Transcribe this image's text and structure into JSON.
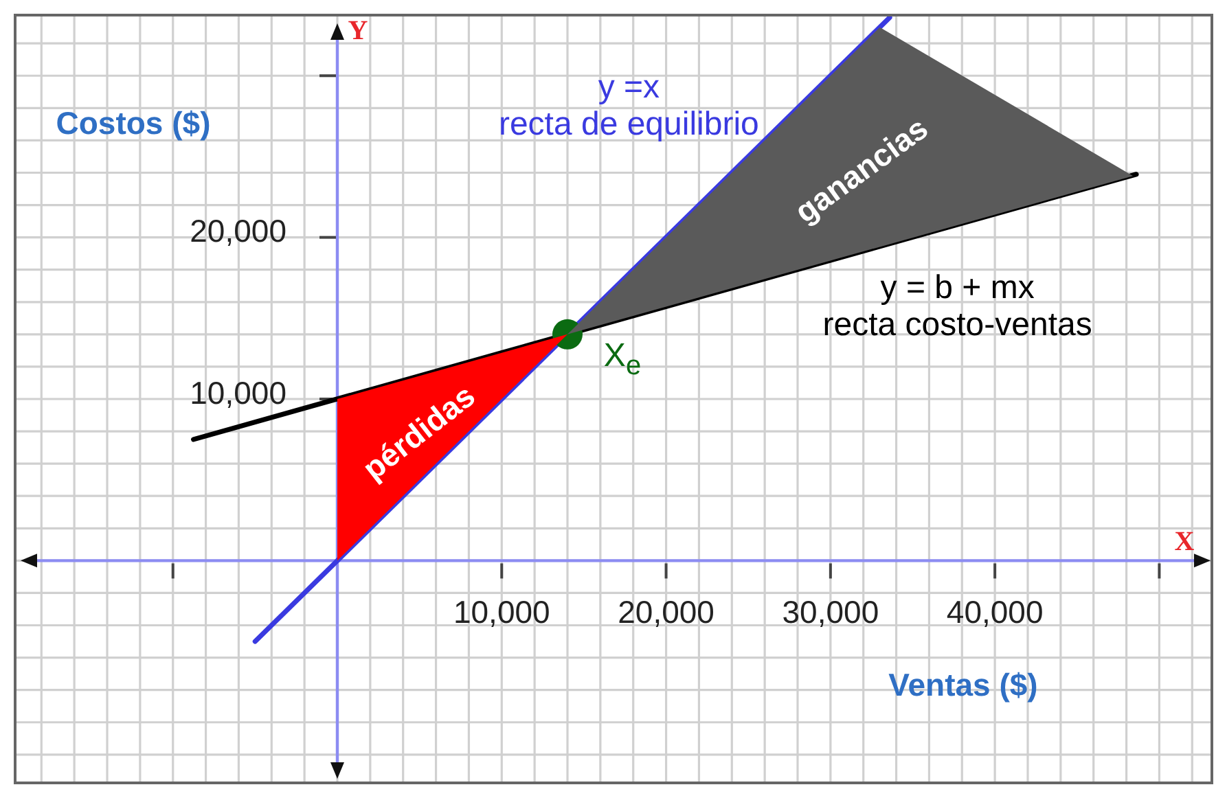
{
  "chart_data": {
    "type": "line",
    "xlabel": "Ventas ($)",
    "ylabel": "Costos ($)",
    "annotations": [
      "X",
      "Y"
    ],
    "xlim": [
      -19600,
      53200
    ],
    "ylim": [
      -13750,
      33750
    ],
    "xticks": [
      {
        "value": -10000,
        "label": null
      },
      {
        "value": 10000,
        "label": "10,000"
      },
      {
        "value": 20000,
        "label": "20,000"
      },
      {
        "value": 30000,
        "label": "30,000"
      },
      {
        "value": 40000,
        "label": "40,000"
      },
      {
        "value": 50000,
        "label": null
      }
    ],
    "yticks": [
      {
        "value": 10000,
        "label": "10,000"
      },
      {
        "value": 20000,
        "label": "20,000"
      },
      {
        "value": 30000,
        "label": null
      }
    ],
    "grid": true,
    "series": [
      {
        "type": "line",
        "name": "y =x\nrecta de equilibrio",
        "color": "#3a3ae0",
        "x": [
          -5000,
          33600
        ],
        "values": [
          -5000,
          33600
        ]
      },
      {
        "type": "line",
        "name": "y = b + mx\nrecta costo-ventas",
        "color": "#000000",
        "x": [
          -8750,
          48600
        ],
        "values": [
          7500,
          23900
        ]
      },
      {
        "type": "area",
        "name": "ganancias",
        "color": "#5a5a5a",
        "x": [
          14000,
          33000,
          48400
        ],
        "values": [
          14000,
          33000,
          23800
        ]
      },
      {
        "type": "area",
        "name": "pérdidas",
        "color": "#ff0000",
        "x": [
          0,
          0,
          14000
        ],
        "values": [
          0,
          10000,
          14000
        ]
      },
      {
        "type": "scatter",
        "name": "X$_{e}$",
        "color": "#0b6b12",
        "marker": "circle",
        "x": [
          14000
        ],
        "values": [
          14000
        ]
      }
    ]
  }
}
